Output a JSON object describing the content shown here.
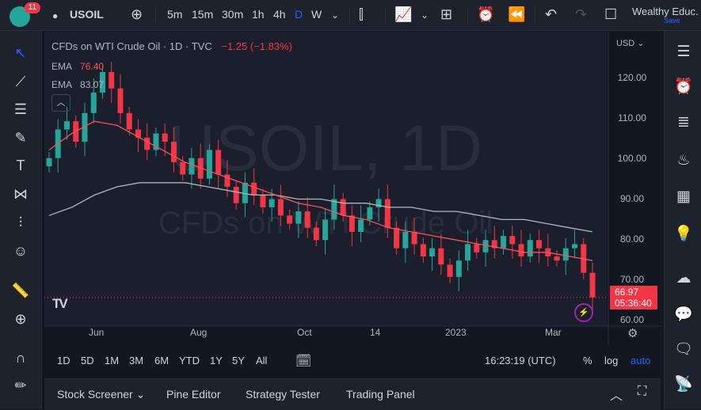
{
  "header": {
    "badge_count": "11",
    "symbol": "USOIL",
    "intervals": [
      "5m",
      "15m",
      "30m",
      "1h",
      "4h",
      "D",
      "W"
    ],
    "active_interval": "D",
    "user_name": "Wealthy Educ.",
    "save_label": "Save"
  },
  "legend": {
    "ticker": "CFDs on WTI Crude Oil · 1D · TVC",
    "change": "−1.25 (−1.83%)",
    "ema1_label": "EMA",
    "ema1_value": "76.40",
    "ema2_label": "EMA",
    "ema2_value": "83.07"
  },
  "watermark": {
    "symbol": "USOIL, 1D",
    "name": "CFDs on WTI Crude Oil"
  },
  "price_axis": {
    "currency": "USD",
    "ticks": [
      "120.00",
      "110.00",
      "100.00",
      "90.00",
      "80.00",
      "70.00",
      "60.00"
    ],
    "last_price": "66.97",
    "countdown": "05:36:40"
  },
  "time_axis": {
    "labels": [
      "Jun",
      "Aug",
      "Oct",
      "14",
      "2023",
      "Mar"
    ]
  },
  "range_bar": {
    "ranges": [
      "1D",
      "5D",
      "1M",
      "3M",
      "6M",
      "YTD",
      "1Y",
      "5Y",
      "All"
    ],
    "clock": "16:23:19 (UTC)",
    "percent": "%",
    "log": "log",
    "auto": "auto"
  },
  "bottom_tabs": [
    "Stock Screener",
    "Pine Editor",
    "Strategy Tester",
    "Trading Panel"
  ],
  "colors": {
    "up": "#26a69a",
    "down": "#f23645",
    "ema_fast": "#f7525f",
    "ema_slow": "#b2b5be",
    "accent": "#2962ff"
  },
  "chart_data": {
    "type": "candlestick",
    "ylim": [
      60,
      128
    ],
    "last_price": 66.97,
    "close_approx": [
      101,
      108,
      110,
      105,
      112,
      117,
      122,
      118,
      112,
      108,
      106,
      103,
      107,
      105,
      100,
      97,
      101,
      96,
      103,
      97,
      94,
      90,
      95,
      92,
      89,
      91,
      87,
      85,
      88,
      84,
      81,
      86,
      91,
      87,
      83,
      86,
      89,
      91,
      84,
      79,
      83,
      80,
      77,
      79,
      75,
      72,
      76,
      80,
      78,
      81,
      79,
      82,
      80,
      77,
      81,
      79,
      77,
      76,
      79,
      80,
      73,
      67
    ],
    "ema_fast_approx": [
      103,
      107,
      110,
      109,
      106,
      103,
      100,
      98,
      96,
      94,
      92,
      90,
      89,
      87,
      86,
      84,
      83,
      82,
      81,
      80,
      79,
      78,
      78,
      77,
      76
    ],
    "ema_slow_approx": [
      87,
      89,
      92,
      94,
      95,
      95,
      95,
      94,
      93,
      92,
      92,
      91,
      91,
      90,
      90,
      89,
      89,
      88,
      88,
      87,
      86,
      86,
      85,
      84,
      83
    ]
  }
}
